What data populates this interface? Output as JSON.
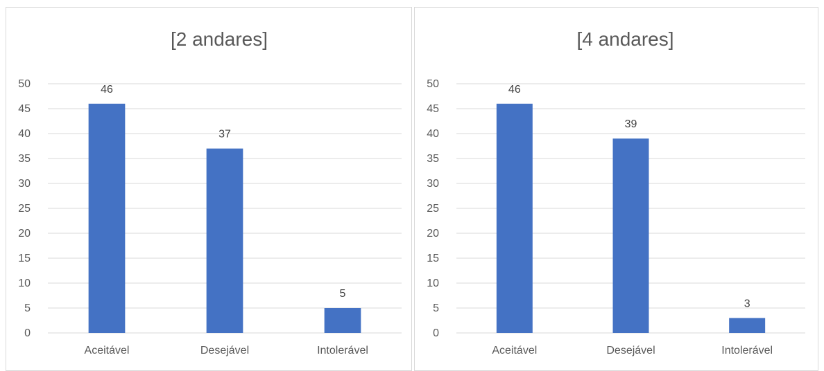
{
  "chart_data": [
    {
      "type": "bar",
      "title": "[2 andares]",
      "categories": [
        "Aceitável",
        "Desejável",
        "Intolerável"
      ],
      "values": [
        46,
        37,
        5
      ],
      "ylim": [
        0,
        50
      ],
      "yticks": [
        0,
        5,
        10,
        15,
        20,
        25,
        30,
        35,
        40,
        45,
        50
      ],
      "xlabel": "",
      "ylabel": "",
      "grid": true,
      "data_labels": true,
      "bar_color": "#4472C4"
    },
    {
      "type": "bar",
      "title": "[4 andares]",
      "categories": [
        "Aceitável",
        "Desejável",
        "Intolerável"
      ],
      "values": [
        46,
        39,
        3
      ],
      "ylim": [
        0,
        50
      ],
      "yticks": [
        0,
        5,
        10,
        15,
        20,
        25,
        30,
        35,
        40,
        45,
        50
      ],
      "xlabel": "",
      "ylabel": "",
      "grid": true,
      "data_labels": true,
      "bar_color": "#4472C4"
    }
  ]
}
